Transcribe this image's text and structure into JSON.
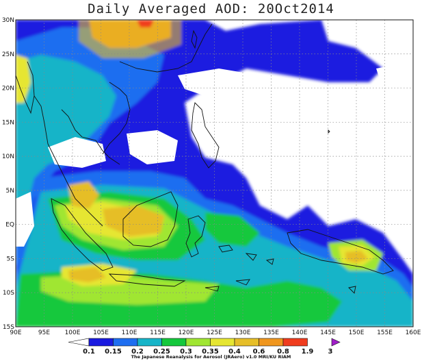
{
  "title": "Daily Averaged AOD: 20Oct2014",
  "credit": "The Japanese Reanalysis for Aerosol (JRAero) v1.0 MRI/KU RIAM",
  "map": {
    "lon_range": [
      90,
      160
    ],
    "lat_range": [
      -15,
      30
    ],
    "lon_ticks": [
      "90E",
      "95E",
      "100E",
      "105E",
      "110E",
      "115E",
      "120E",
      "125E",
      "130E",
      "135E",
      "140E",
      "145E",
      "150E",
      "155E",
      "160E"
    ],
    "lat_ticks": [
      "15S",
      "10S",
      "5S",
      "EQ",
      "5N",
      "10N",
      "15N",
      "20N",
      "25N",
      "30N"
    ],
    "grid": true
  },
  "colorbar": {
    "labels": [
      "0.1",
      "0.15",
      "0.2",
      "0.25",
      "0.3",
      "0.35",
      "0.4",
      "0.6",
      "0.8",
      "1.9",
      "3"
    ],
    "colors": [
      "#ffffff",
      "#1a1ae0",
      "#1e6ef0",
      "#16b4c8",
      "#14c83c",
      "#a0e632",
      "#e6e632",
      "#e6be28",
      "#f0961e",
      "#f03c1e",
      "#a01ec8"
    ]
  }
}
